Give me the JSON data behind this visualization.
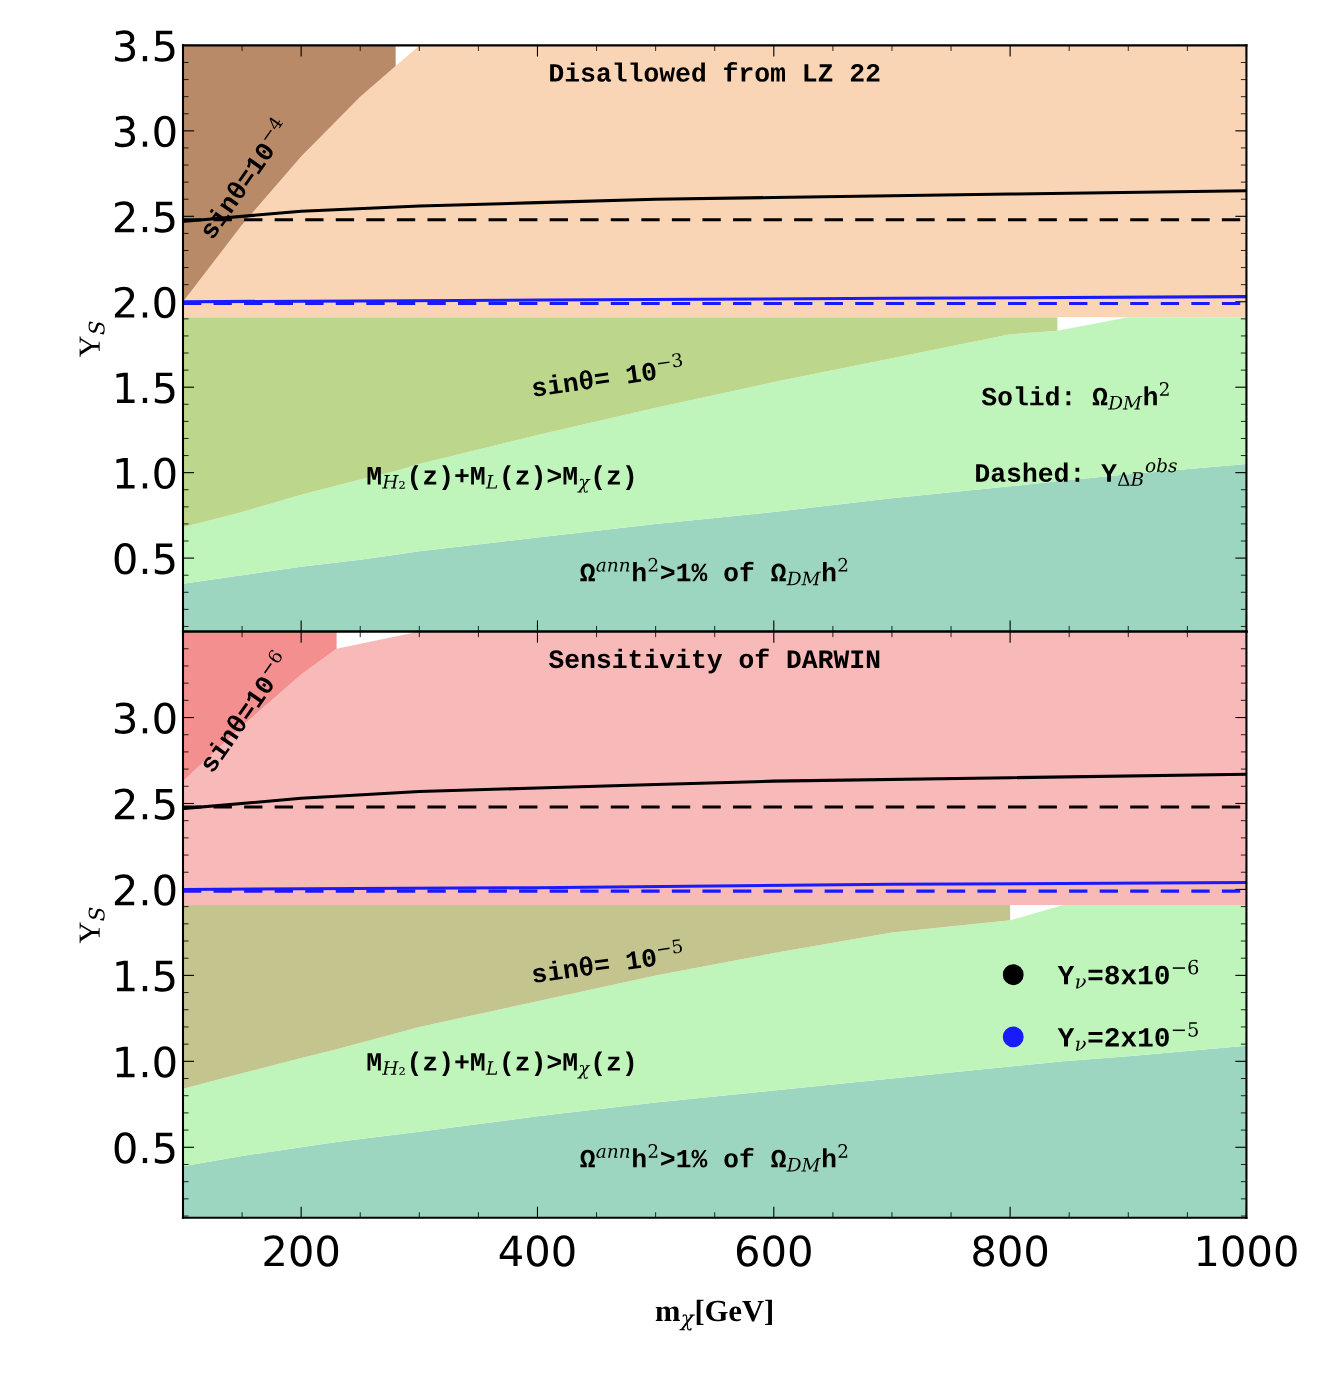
{
  "chart_data": [
    {
      "type": "area",
      "stacked": true,
      "xlim": [
        100,
        1000
      ],
      "ylim": [
        0.07,
        3.5
      ],
      "xticks": [
        200,
        400,
        600,
        800,
        1000
      ],
      "yticks": [
        0.5,
        {
          "value": 1,
          "label": "1.0"
        },
        1.5,
        {
          "value": 2,
          "label": "2.0"
        },
        2.5,
        {
          "value": 3,
          "label": "3.0"
        },
        3.5
      ],
      "tick_labels": "y",
      "ylabel": "Y$_{S}$",
      "grid": false,
      "legend": false,
      "series": [
        {
          "color": "#9dd6c0",
          "values": [
            0.35,
            0.4,
            0.45,
            0.49,
            0.52,
            0.54,
            0.62,
            0.7,
            0.77,
            0.85,
            0.92,
            0.95,
            0.99,
            1.05
          ]
        },
        {
          "color": "#bff5bb",
          "values": [
            0.33,
            0.37,
            0.42,
            0.47,
            0.49,
            0.51,
            0.6,
            0.68,
            0.76,
            0.82,
            0.89,
            0.88,
            0.92,
            0.86
          ]
        },
        {
          "color": "#bcd68c",
          "values": [
            1.23,
            1.14,
            1.04,
            0.95,
            0.9,
            0.86,
            0.69,
            0.53,
            0.38,
            0.24,
            0.1,
            0.08,
            null,
            null
          ]
        },
        {
          "color": "#f9d5b5",
          "values": [
            0.09,
            0.54,
            0.94,
            1.29,
            1.47,
            1.59,
            1.59,
            1.59,
            1.59,
            1.59,
            1.59,
            1.59,
            1.59,
            1.59
          ]
        },
        {
          "color": "#b98a68",
          "values": [
            1.5,
            1.05,
            0.65,
            0.3,
            0.12,
            null,
            null,
            null,
            null,
            null,
            null,
            null,
            null,
            null
          ]
        },
        {
          "type": "line",
          "color": "#000000",
          "line_style": "solid",
          "x": [
            100,
            200,
            300,
            400,
            500,
            600,
            800,
            1000
          ],
          "values": [
            2.47,
            2.53,
            2.56,
            2.58,
            2.6,
            2.61,
            2.63,
            2.65
          ]
        },
        {
          "type": "line",
          "color": "#000000",
          "line_style": "dashed",
          "x": [
            100,
            1000
          ],
          "values": [
            2.48,
            2.48
          ]
        },
        {
          "type": "line",
          "color": "#1a1aff",
          "line_style": "solid",
          "x": [
            100,
            400,
            700,
            1000
          ],
          "values": [
            2.0,
            2.01,
            2.02,
            2.03
          ]
        },
        {
          "type": "line",
          "color": "#1a1aff",
          "line_style": "dashed",
          "x": [
            100,
            1000
          ],
          "values": [
            1.99,
            1.99
          ]
        }
      ],
      "x": [
        100,
        150,
        200,
        250,
        280,
        300,
        400,
        500,
        600,
        700,
        800,
        840,
        900,
        1000
      ],
      "annotations": [
        "Disallowed from LZ 22",
        "sinθ=10$^{−4}$",
        "sinθ= 10$^{−3}$",
        "Solid: Ω$_{DM}$h$^{2}$",
        "Dashed: Y$_{ΔB}$$^{obs}$",
        "M$_{H₂}$(z)+M$_{L}$(z)>M$_{χ}$(z)",
        "Ω$^{ann}$h$^{2}$>1% of Ω$_{DM}$h$^{2}$"
      ]
    },
    {
      "type": "area",
      "stacked": true,
      "xlim": [
        100,
        1000
      ],
      "ylim": [
        0.09,
        3.5
      ],
      "xticks": [
        200,
        400,
        600,
        800,
        1000
      ],
      "yticks": [
        0.5,
        {
          "value": 1,
          "label": "1.0"
        },
        1.5,
        {
          "value": 2,
          "label": "2.0"
        },
        2.5,
        {
          "value": 3,
          "label": "3.0"
        }
      ],
      "xlabel": "m$_{χ}$[GeV]",
      "ylabel": "Y$_{S}$",
      "grid": false,
      "legend": "right",
      "series": [
        {
          "color": "#9dd6c0",
          "values": [
            0.39,
            0.45,
            0.5,
            0.53,
            0.59,
            0.68,
            0.76,
            0.83,
            0.9,
            0.97,
            1.0,
            1.03,
            1.09
          ]
        },
        {
          "color": "#bff5bb",
          "values": [
            0.45,
            0.48,
            0.52,
            0.54,
            0.61,
            0.67,
            0.74,
            0.8,
            0.85,
            0.85,
            0.91,
            0.88,
            0.82
          ]
        },
        {
          "color": "#c4c48f",
          "values": [
            1.07,
            0.98,
            0.89,
            0.84,
            0.71,
            0.56,
            0.41,
            0.28,
            0.16,
            0.09,
            null,
            null,
            null
          ]
        },
        {
          "color": "#f8b9b9",
          "values": [
            0.72,
            1.04,
            1.34,
            1.49,
            1.59,
            1.59,
            1.59,
            1.59,
            1.59,
            1.59,
            1.59,
            1.59,
            1.59
          ]
        },
        {
          "color": "#f48f8f",
          "values": [
            0.87,
            0.55,
            0.25,
            0.1,
            null,
            null,
            null,
            null,
            null,
            null,
            null,
            null,
            null
          ]
        },
        {
          "type": "line",
          "name": "Y$_{ν}$=8x10$^{−6}$",
          "color": "#000000",
          "line_style": "solid",
          "x": [
            100,
            200,
            300,
            400,
            500,
            600,
            800,
            1000
          ],
          "values": [
            2.47,
            2.53,
            2.57,
            2.59,
            2.61,
            2.63,
            2.65,
            2.67
          ]
        },
        {
          "type": "line",
          "color": "#000000",
          "line_style": "dashed",
          "x": [
            100,
            1000
          ],
          "values": [
            2.48,
            2.48
          ]
        },
        {
          "type": "line",
          "name": "Y$_{ν}$=2x10$^{−5}$",
          "color": "#1a1aff",
          "line_style": "solid",
          "x": [
            100,
            400,
            700,
            1000
          ],
          "values": [
            2.0,
            2.01,
            2.03,
            2.04
          ]
        },
        {
          "type": "line",
          "color": "#1a1aff",
          "line_style": "dashed",
          "x": [
            100,
            1000
          ],
          "values": [
            1.99,
            1.99
          ]
        }
      ],
      "x": [
        100,
        150,
        200,
        230,
        300,
        400,
        500,
        600,
        700,
        800,
        845,
        900,
        1000
      ],
      "annotations": [
        "Sensitivity of DARWIN",
        "sinθ=10$^{−6}$",
        "sinθ= 10$^{−5}$",
        "M$_{H₂}$(z)+M$_{L}$(z)>M$_{χ}$(z)",
        "Ω$^{ann}$h$^{2}$>1% of Ω$_{DM}$h$^{2}$"
      ]
    }
  ]
}
